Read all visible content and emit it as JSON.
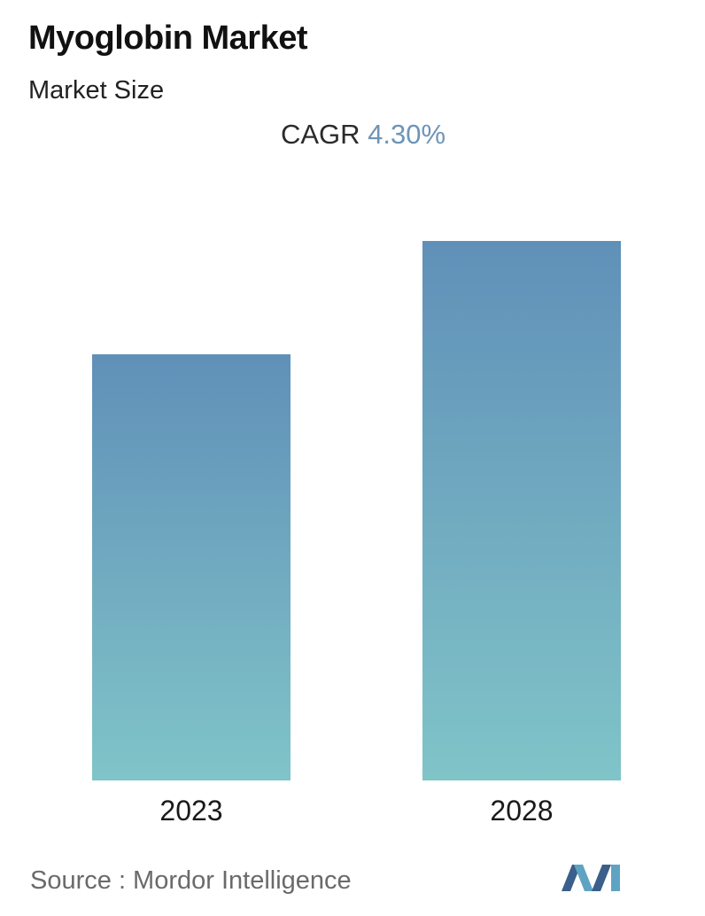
{
  "header": {
    "title": "Myoglobin Market",
    "subtitle": "Market Size",
    "cagr_label": "CAGR",
    "cagr_value": "4.30%"
  },
  "chart_data": {
    "type": "bar",
    "categories": [
      "2023",
      "2028"
    ],
    "values": [
      0.79,
      1.0
    ],
    "value_unit": "relative bar height (no values printed)",
    "ylim": [
      0,
      1
    ],
    "grid": false,
    "legend": "none",
    "colors": {
      "bar_top": "#6090b8",
      "bar_bottom": "#80c4c8"
    }
  },
  "footer": {
    "source": "Source :  Mordor Intelligence",
    "logo_colors": [
      "#3a5f8a",
      "#5fa3c3"
    ]
  }
}
